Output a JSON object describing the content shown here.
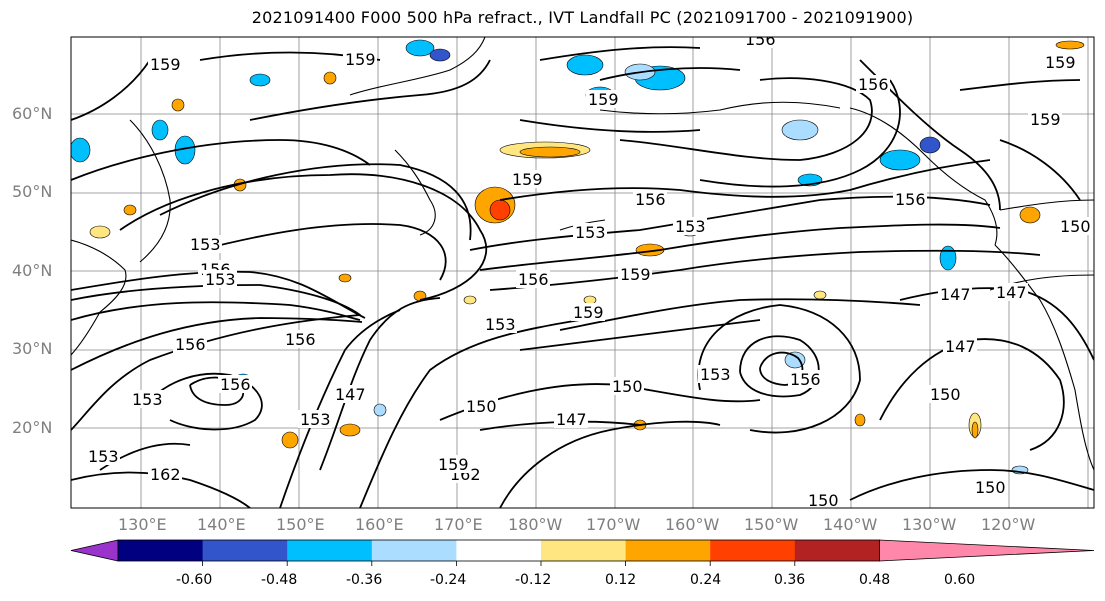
{
  "title": "2021091400 F000 500 hPa refract., IVT Landfall PC (2021091700 - 2021091900)",
  "map": {
    "lat_labels": [
      "60°N",
      "50°N",
      "40°N",
      "30°N",
      "20°N"
    ],
    "lon_labels": [
      "130°E",
      "140°E",
      "150°E",
      "160°E",
      "170°E",
      "180°W",
      "170°W",
      "160°W",
      "150°W",
      "140°W",
      "130°W",
      "120°W"
    ],
    "contour_labels": [
      "159",
      "159",
      "156",
      "159",
      "159",
      "159",
      "156",
      "156",
      "159",
      "153",
      "156",
      "153",
      "153",
      "156",
      "159",
      "159",
      "153",
      "156",
      "150",
      "150",
      "147",
      "147",
      "147",
      "150",
      "150",
      "147",
      "150",
      "153",
      "156",
      "153",
      "156",
      "153",
      "156",
      "162",
      "162",
      "159",
      "150",
      "147",
      "153",
      "153",
      "156"
    ]
  },
  "colorbar": {
    "colors": [
      "#9933cc",
      "#000080",
      "#3355cc",
      "#00bfff",
      "#aaddff",
      "#ffffff",
      "#ffe680",
      "#ffa500",
      "#ff4000",
      "#b22222",
      "#ff88aa"
    ],
    "tick_labels": [
      "-0.60",
      "-0.48",
      "-0.36",
      "-0.24",
      "-0.12",
      "0.12",
      "0.24",
      "0.36",
      "0.48",
      "0.60"
    ]
  }
}
